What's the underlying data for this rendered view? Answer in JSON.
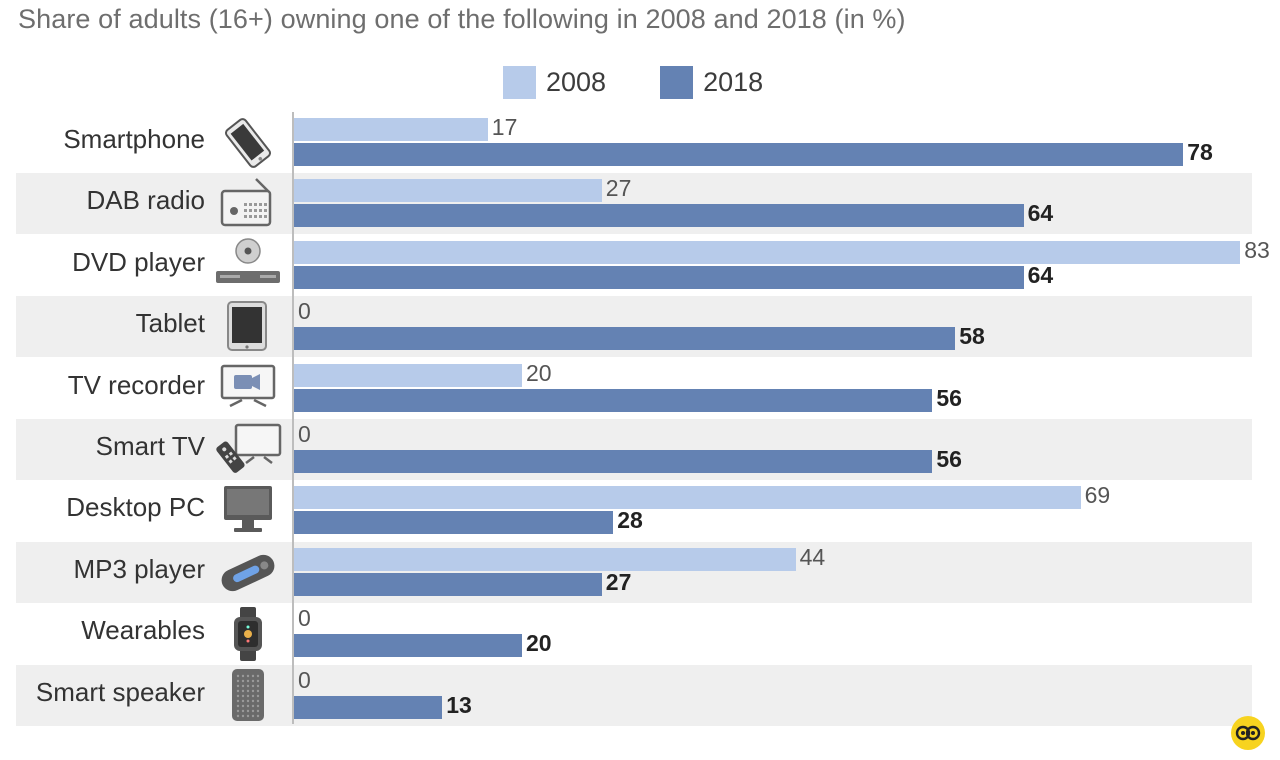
{
  "chart_data": {
    "type": "bar",
    "orientation": "horizontal",
    "subtitle": "Share of adults (16+) owning one of the following in 2008 and 2018 (in %)",
    "categories": [
      "Smartphone",
      "DAB radio",
      "DVD player",
      "Tablet",
      "TV recorder",
      "Smart TV",
      "Desktop PC",
      "MP3 player",
      "Wearables",
      "Smart speaker"
    ],
    "icons": [
      "smartphone-icon",
      "radio-icon",
      "dvd-player-icon",
      "tablet-icon",
      "tv-recorder-icon",
      "smart-tv-icon",
      "desktop-pc-icon",
      "mp3-player-icon",
      "smartwatch-icon",
      "smart-speaker-icon"
    ],
    "series": [
      {
        "name": "2008",
        "color": "#b7cbea",
        "values": [
          17,
          27,
          83,
          0,
          20,
          0,
          69,
          44,
          0,
          0
        ]
      },
      {
        "name": "2018",
        "color": "#6482b3",
        "values": [
          78,
          64,
          64,
          58,
          56,
          56,
          28,
          27,
          20,
          13
        ]
      }
    ],
    "xlim": [
      0,
      83
    ],
    "legend_position": "top",
    "grid": false,
    "band_color": "#efefef"
  }
}
